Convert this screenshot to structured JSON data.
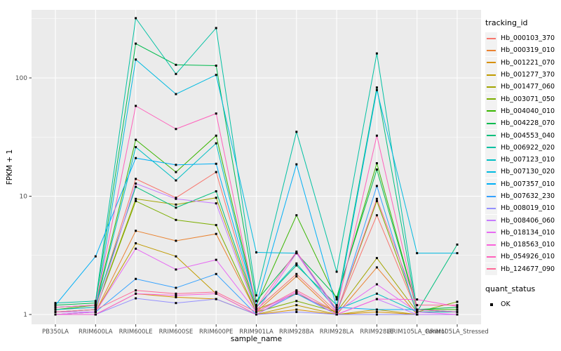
{
  "chart_data": {
    "type": "line",
    "title": "",
    "xlabel": "sample_name",
    "ylabel": "FPKM + 1",
    "y_scale": "log10",
    "ylim": [
      0.85,
      380
    ],
    "y_ticks": [
      {
        "label": "1",
        "value": 1
      },
      {
        "label": "10",
        "value": 10
      },
      {
        "label": "100",
        "value": 100
      }
    ],
    "grid": true,
    "legend_position": "right",
    "panel_bg": "#EBEBEB",
    "grid_color": "#FFFFFF",
    "tick_label_color": "#4D4D4D",
    "marker": "black-square",
    "marker_color": "#000000",
    "categories": [
      "PB350LA",
      "RRIM600LA",
      "RRIM600LE",
      "RRIM600SE",
      "RRIM600PE",
      "RRIM901LA",
      "RRIM928BA",
      "RRIM928LA",
      "RRIM928LE",
      "RRIM105LA_Control",
      "RRIM105LA_Stressed"
    ],
    "legend": {
      "title": "tracking_id"
    },
    "legend2": {
      "title": "quant_status",
      "items": [
        {
          "label": "OK",
          "marker": "black-square"
        }
      ]
    },
    "series": [
      {
        "name": "Hb_000103_370",
        "color": "#F8766D",
        "values": [
          1.1,
          1.15,
          14,
          9.7,
          16,
          1.1,
          2.2,
          1.05,
          6.9,
          1.05,
          1.05
        ]
      },
      {
        "name": "Hb_000319_010",
        "color": "#EA8331",
        "values": [
          1.0,
          1.05,
          5.1,
          4.2,
          4.8,
          1.05,
          2.1,
          1.0,
          2.5,
          1.0,
          1.0
        ]
      },
      {
        "name": "Hb_001221_070",
        "color": "#D89000",
        "values": [
          1.0,
          1.0,
          1.5,
          1.4,
          1.35,
          1.0,
          1.1,
          1.0,
          1.05,
          1.0,
          1.0
        ]
      },
      {
        "name": "Hb_001277_370",
        "color": "#C09B00",
        "values": [
          1.0,
          1.05,
          4.0,
          3.1,
          1.5,
          1.0,
          1.2,
          1.0,
          1.1,
          1.0,
          1.0
        ]
      },
      {
        "name": "Hb_001477_060",
        "color": "#A3A500",
        "values": [
          1.05,
          1.1,
          9.5,
          8.5,
          9.7,
          1.1,
          1.5,
          1.05,
          3.0,
          1.05,
          1.05
        ]
      },
      {
        "name": "Hb_003071_050",
        "color": "#7CAE00",
        "values": [
          1.05,
          1.1,
          9.1,
          6.3,
          5.7,
          1.05,
          1.3,
          1.05,
          9.1,
          1.05,
          1.28
        ]
      },
      {
        "name": "Hb_004040_010",
        "color": "#39B600",
        "values": [
          1.1,
          1.2,
          30,
          16,
          32.5,
          1.2,
          6.9,
          1.34,
          19,
          1.1,
          1.1
        ]
      },
      {
        "name": "Hb_004228_070",
        "color": "#00BB4E",
        "values": [
          1.2,
          1.25,
          195,
          129,
          127,
          1.3,
          3.3,
          1.4,
          16.8,
          1.1,
          1.15
        ]
      },
      {
        "name": "Hb_004553_040",
        "color": "#00BF7D",
        "values": [
          1.15,
          1.2,
          12,
          8.0,
          11,
          1.15,
          2.6,
          1.2,
          83,
          1.05,
          3.9
        ]
      },
      {
        "name": "Hb_006922_020",
        "color": "#00C1A3",
        "values": [
          1.25,
          1.3,
          320,
          108,
          264,
          1.45,
          35,
          2.3,
          161,
          1.1,
          1.05
        ]
      },
      {
        "name": "Hb_007123_010",
        "color": "#00BFC4",
        "values": [
          1.1,
          1.15,
          26,
          13.6,
          28,
          1.15,
          2.7,
          1.1,
          1.5,
          1.05,
          1.05
        ]
      },
      {
        "name": "Hb_007130_020",
        "color": "#00BAE0",
        "values": [
          1.05,
          1.1,
          143,
          73,
          106,
          3.35,
          3.3,
          1.1,
          79,
          3.3,
          3.3
        ]
      },
      {
        "name": "Hb_007357_010",
        "color": "#00B0F6",
        "values": [
          1.2,
          3.1,
          21,
          18.4,
          18.8,
          1.2,
          18.6,
          1.15,
          1.1,
          1.1,
          1.05
        ]
      },
      {
        "name": "Hb_007632_230",
        "color": "#35A2FF",
        "values": [
          1.0,
          1.05,
          2.0,
          1.68,
          2.2,
          1.0,
          1.5,
          1.0,
          12.2,
          1.0,
          1.0
        ]
      },
      {
        "name": "Hb_008019_010",
        "color": "#9590FF",
        "values": [
          1.0,
          1.0,
          1.37,
          1.25,
          1.35,
          1.0,
          1.05,
          1.0,
          1.0,
          1.0,
          1.0
        ]
      },
      {
        "name": "Hb_008406_060",
        "color": "#C77CFF",
        "values": [
          1.05,
          1.05,
          12.8,
          9.5,
          8.7,
          1.05,
          1.55,
          1.0,
          1.35,
          1.0,
          1.0
        ]
      },
      {
        "name": "Hb_018134_010",
        "color": "#E76BF3",
        "values": [
          1.0,
          1.05,
          3.6,
          2.4,
          2.9,
          1.05,
          3.3,
          1.05,
          1.8,
          1.05,
          1.0
        ]
      },
      {
        "name": "Hb_018563_010",
        "color": "#FA62DB",
        "values": [
          1.0,
          1.0,
          1.5,
          1.45,
          1.5,
          1.0,
          1.55,
          1.0,
          1.35,
          1.34,
          1.17
        ]
      },
      {
        "name": "Hb_054926_010",
        "color": "#FF62BC",
        "values": [
          1.15,
          1.2,
          58,
          37,
          50,
          1.15,
          3.4,
          1.1,
          32.5,
          1.1,
          1.05
        ]
      },
      {
        "name": "Hb_124677_090",
        "color": "#FF6A98",
        "values": [
          1.05,
          1.1,
          1.6,
          1.5,
          1.55,
          1.05,
          1.6,
          1.05,
          9.5,
          1.2,
          1.2
        ]
      }
    ]
  }
}
